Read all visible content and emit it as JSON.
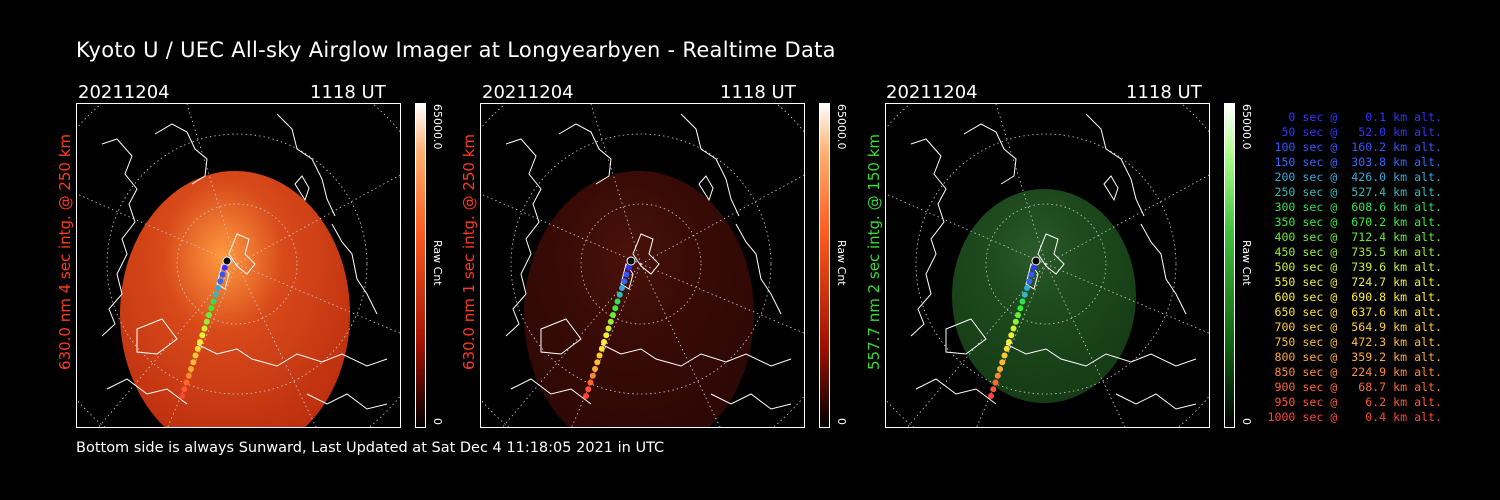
{
  "title": "Kyoto U / UEC All-sky Airglow Imager at Longyearbyen - Realtime Data",
  "footer": "Bottom side is always Sunward, Last Updated at Sat Dec  4 11:18:05 2021 in UTC",
  "panels": [
    {
      "date": "20211204",
      "time": "1118 UT",
      "ylabel": "630.0 nm 4 sec intg. @ 250 km",
      "ylabel_color": "#ff3a1a",
      "cbar_max": "65000.0",
      "cbar_min": "0",
      "cbar_label": "Raw Cnt",
      "tint": "red-bright"
    },
    {
      "date": "20211204",
      "time": "1118 UT",
      "ylabel": "630.0 nm 1 sec intg. @ 250 km",
      "ylabel_color": "#ff3a1a",
      "cbar_max": "65000.0",
      "cbar_min": "0",
      "cbar_label": "Raw Cnt",
      "tint": "red-dim"
    },
    {
      "date": "20211204",
      "time": "1118 UT",
      "ylabel": "557.7 nm 2 sec intg. @ 150 km",
      "ylabel_color": "#33dd33",
      "cbar_max": "65000.0",
      "cbar_min": "0",
      "cbar_label": "Raw Cnt",
      "tint": "green"
    }
  ],
  "legend": [
    {
      "text": "   0 sec @    0.1 km alt.",
      "color": "#3333ff"
    },
    {
      "text": "  50 sec @   52.0 km alt.",
      "color": "#3333ff"
    },
    {
      "text": " 100 sec @  160.2 km alt.",
      "color": "#3355ff"
    },
    {
      "text": " 150 sec @  303.8 km alt.",
      "color": "#3366ff"
    },
    {
      "text": " 200 sec @  426.0 km alt.",
      "color": "#33aadd"
    },
    {
      "text": " 250 sec @  527.4 km alt.",
      "color": "#33bbbb"
    },
    {
      "text": " 300 sec @  608.6 km alt.",
      "color": "#33dd55"
    },
    {
      "text": " 350 sec @  670.2 km alt.",
      "color": "#33ee33"
    },
    {
      "text": " 400 sec @  712.4 km alt.",
      "color": "#66ee33"
    },
    {
      "text": " 450 sec @  735.5 km alt.",
      "color": "#99ee33"
    },
    {
      "text": " 500 sec @  739.6 km alt.",
      "color": "#ccee33"
    },
    {
      "text": " 550 sec @  724.7 km alt.",
      "color": "#eeee33"
    },
    {
      "text": " 600 sec @  690.8 km alt.",
      "color": "#ffee33"
    },
    {
      "text": " 650 sec @  637.6 km alt.",
      "color": "#ffdd33"
    },
    {
      "text": " 700 sec @  564.9 km alt.",
      "color": "#ffcc33"
    },
    {
      "text": " 750 sec @  472.3 km alt.",
      "color": "#ffbb33"
    },
    {
      "text": " 800 sec @  359.2 km alt.",
      "color": "#ffaa33"
    },
    {
      "text": " 850 sec @  224.9 km alt.",
      "color": "#ff8833"
    },
    {
      "text": " 900 sec @   68.7 km alt.",
      "color": "#ff6633"
    },
    {
      "text": " 950 sec @    6.2 km alt.",
      "color": "#ff5533"
    },
    {
      "text": "1000 sec @    0.4 km alt.",
      "color": "#ff4433"
    }
  ]
}
